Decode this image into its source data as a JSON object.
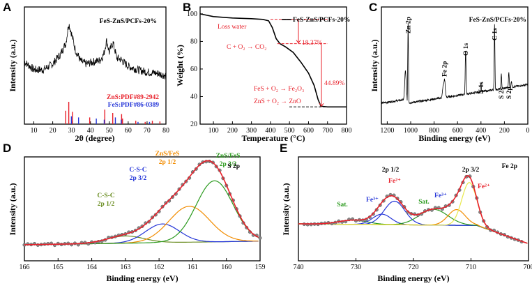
{
  "chart_data": [
    {
      "panel": "A",
      "type": "line",
      "legend": "FeS-ZnS/PCFs-20%",
      "xlabel": "2θ (degree)",
      "ylabel": "Intensity (a.u.)",
      "xlim": [
        5,
        80
      ],
      "xticks": [
        10,
        20,
        30,
        40,
        50,
        60,
        70,
        80
      ],
      "pattern": [
        [
          5,
          0.62
        ],
        [
          10,
          0.55
        ],
        [
          15,
          0.55
        ],
        [
          20,
          0.6
        ],
        [
          24,
          0.68
        ],
        [
          27,
          0.78
        ],
        [
          28.5,
          0.95
        ],
        [
          30,
          0.86
        ],
        [
          32,
          0.72
        ],
        [
          35,
          0.62
        ],
        [
          38,
          0.6
        ],
        [
          42,
          0.62
        ],
        [
          45,
          0.63
        ],
        [
          47,
          0.68
        ],
        [
          48.5,
          0.8
        ],
        [
          50,
          0.7
        ],
        [
          51,
          0.75
        ],
        [
          52,
          0.78
        ],
        [
          54,
          0.65
        ],
        [
          56,
          0.64
        ],
        [
          60,
          0.58
        ],
        [
          65,
          0.55
        ],
        [
          70,
          0.53
        ],
        [
          75,
          0.52
        ],
        [
          80,
          0.5
        ]
      ],
      "refs": [
        {
          "name": "ZnS:PDF#89-2942",
          "color": "#e8202a",
          "sticks": [
            [
              26.9,
              0.6
            ],
            [
              28.5,
              1.0
            ],
            [
              30.5,
              0.55
            ],
            [
              39.6,
              0.3
            ],
            [
              47.6,
              0.65
            ],
            [
              51.8,
              0.5
            ],
            [
              56.5,
              0.45
            ],
            [
              57.0,
              0.25
            ],
            [
              64.0,
              0.15
            ],
            [
              69.0,
              0.1
            ],
            [
              72.8,
              0.15
            ],
            [
              76.8,
              0.12
            ]
          ]
        },
        {
          "name": "FeS:PDF#86-0389",
          "color": "#2536d8",
          "sticks": [
            [
              29.9,
              0.35
            ],
            [
              33.7,
              0.3
            ],
            [
              43.1,
              0.25
            ],
            [
              47.3,
              0.2
            ],
            [
              53.2,
              0.3
            ],
            [
              56.3,
              0.2
            ],
            [
              65.2,
              0.1
            ],
            [
              71.3,
              0.1
            ]
          ]
        }
      ]
    },
    {
      "panel": "B",
      "type": "line",
      "legend": "FeS-ZnS/PCFs-20%",
      "xlabel": "Temperature (°C)",
      "ylabel": "Weight (%)",
      "xlim": [
        30,
        800
      ],
      "ylim": [
        20,
        105
      ],
      "xticks": [
        100,
        200,
        300,
        400,
        500,
        600,
        700,
        800
      ],
      "yticks": [
        20,
        40,
        60,
        80,
        100
      ],
      "curve": [
        [
          30,
          100
        ],
        [
          100,
          98
        ],
        [
          200,
          97
        ],
        [
          300,
          96.5
        ],
        [
          360,
          96
        ],
        [
          390,
          95
        ],
        [
          410,
          90
        ],
        [
          430,
          82
        ],
        [
          450,
          78.4
        ],
        [
          480,
          76
        ],
        [
          520,
          72
        ],
        [
          560,
          65
        ],
        [
          600,
          57
        ],
        [
          630,
          48
        ],
        [
          650,
          38
        ],
        [
          665,
          33
        ],
        [
          700,
          32.5
        ],
        [
          800,
          32.5
        ]
      ],
      "annotations": {
        "loss_water": "Loss water",
        "carbon": "C + O₂ → CO₂",
        "step1": "18.37%",
        "step2": "44.89%",
        "fes": "FeS + O₂ → Fe₂O₃",
        "zns": "ZnS + O₂ → ZnO"
      }
    },
    {
      "panel": "C",
      "type": "line",
      "legend": "FeS-ZnS/PCFs-20%",
      "xlabel": "Binding energy (eV)",
      "ylabel": "Intensity (a.u.)",
      "xlim": [
        1250,
        0
      ],
      "xticks": [
        1200,
        1000,
        800,
        600,
        400,
        200,
        0
      ],
      "peaks": [
        {
          "label": "Zn 2p",
          "x": 1022
        },
        {
          "label": "Fe 2p",
          "x": 711
        },
        {
          "label": "O 1s",
          "x": 531
        },
        {
          "label": "C 1s",
          "x": 284
        },
        {
          "label": "N 1s",
          "x": 400
        },
        {
          "label": "S 2s",
          "x": 226
        },
        {
          "label": "S 2p",
          "x": 162
        }
      ]
    },
    {
      "panel": "D",
      "type": "line",
      "legend": "S 2p",
      "xlabel": "Binding energy (eV)",
      "ylabel": "Intensity (a.u.)",
      "xlim": [
        166,
        159
      ],
      "xticks": [
        166,
        165,
        164,
        163,
        162,
        161,
        160,
        159
      ],
      "components": [
        {
          "label_top": "C-S-C",
          "label_bot": "2p 1/2",
          "center": 163.0,
          "amp": 0.1,
          "width": 0.55,
          "color": "#6b8e23"
        },
        {
          "label_top": "C-S-C",
          "label_bot": "2p 3/2",
          "center": 161.9,
          "amp": 0.26,
          "width": 0.5,
          "color": "#2536d8"
        },
        {
          "label_top": "ZnS/FeS",
          "label_bot": "2p 1/2",
          "center": 161.1,
          "amp": 0.5,
          "width": 0.6,
          "color": "#f28c00"
        },
        {
          "label_top": "ZnS/FeS",
          "label_bot": "2p 3/2",
          "center": 160.35,
          "amp": 0.85,
          "width": 0.55,
          "color": "#2b9a1e"
        }
      ]
    },
    {
      "panel": "E",
      "type": "line",
      "legend": "Fe 2p",
      "xlabel": "Binding energy (eV)",
      "ylabel": "Intensity (a.u.)",
      "xlim": [
        740,
        700
      ],
      "xticks": [
        740,
        730,
        720,
        710,
        700
      ],
      "annotations": {
        "p12": "2p 1/2",
        "p32": "2p 3/2",
        "sat1": "Sat.",
        "sat2": "Sat.",
        "fe3a": "Fe³⁺",
        "fe2a": "Fe²⁺",
        "fe3b": "Fe³⁺",
        "fe2b": "Fe²⁺"
      },
      "components": [
        {
          "center": 730.5,
          "amp": 0.08,
          "width": 2.5,
          "color": "#2b9a1e"
        },
        {
          "center": 725.5,
          "amp": 0.2,
          "width": 1.6,
          "color": "#2536d8"
        },
        {
          "center": 723.3,
          "amp": 0.45,
          "width": 1.8,
          "color": "#2536d8"
        },
        {
          "center": 716.5,
          "amp": 0.3,
          "width": 2.5,
          "color": "#2b9a1e"
        },
        {
          "center": 712.5,
          "amp": 0.3,
          "width": 1.5,
          "color": "#f28c00"
        },
        {
          "center": 710.3,
          "amp": 0.82,
          "width": 1.3,
          "color": "#e8e84a"
        }
      ]
    }
  ],
  "panel_letters": [
    "A",
    "B",
    "C",
    "D",
    "E"
  ]
}
